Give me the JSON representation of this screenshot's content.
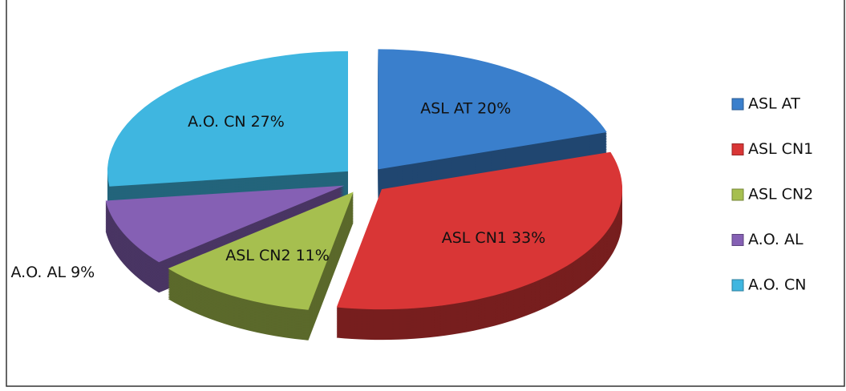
{
  "chart_data": {
    "type": "pie",
    "categories": [
      "ASL AT",
      "ASL CN1",
      "ASL CN2",
      "A.O. AL",
      "A.O. CN"
    ],
    "values": [
      20,
      33,
      11,
      9,
      27
    ],
    "value_labels": [
      "ASL AT 20%",
      "ASL CN1 33%",
      "ASL CN2 11%",
      "A.O. AL 9%",
      "A.O. CN 27%"
    ],
    "colors": [
      "#3a7fcc",
      "#d93636",
      "#a6bf4f",
      "#8560b4",
      "#3fb6e0"
    ],
    "legend": "right"
  }
}
